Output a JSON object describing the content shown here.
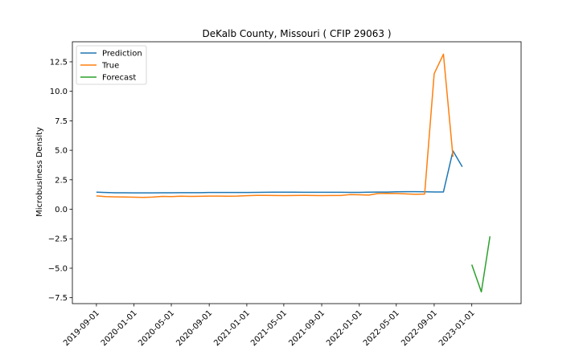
{
  "chart_data": {
    "type": "line",
    "title": "DeKalb County, Missouri ( CFIP 29063 )",
    "xlabel": "",
    "ylabel": "Microbusiness Density",
    "xlim": [
      "2019-06-15",
      "2023-06-10"
    ],
    "ylim": [
      -8.0,
      14.2
    ],
    "y_ticks": [
      -7.5,
      -5.0,
      -2.5,
      0.0,
      2.5,
      5.0,
      7.5,
      10.0,
      12.5
    ],
    "y_tick_labels": [
      "−7.5",
      "−5.0",
      "−2.5",
      "0.0",
      "2.5",
      "5.0",
      "7.5",
      "10.0",
      "12.5"
    ],
    "x_ticks": [
      "2019-09-01",
      "2020-01-01",
      "2020-05-01",
      "2020-09-01",
      "2021-01-01",
      "2021-05-01",
      "2021-09-01",
      "2022-01-01",
      "2022-05-01",
      "2022-09-01",
      "2023-01-01"
    ],
    "legend": {
      "position": "upper-left",
      "entries": [
        "Prediction",
        "True",
        "Forecast"
      ]
    },
    "grid": false,
    "series": [
      {
        "name": "Prediction",
        "color": "#1f77b4",
        "x": [
          "2019-09-01",
          "2019-10-01",
          "2019-11-01",
          "2019-12-01",
          "2020-01-01",
          "2020-02-01",
          "2020-03-01",
          "2020-04-01",
          "2020-05-01",
          "2020-06-01",
          "2020-07-01",
          "2020-08-01",
          "2020-09-01",
          "2020-10-01",
          "2020-11-01",
          "2020-12-01",
          "2021-01-01",
          "2021-02-01",
          "2021-03-01",
          "2021-04-01",
          "2021-05-01",
          "2021-06-01",
          "2021-07-01",
          "2021-08-01",
          "2021-09-01",
          "2021-10-01",
          "2021-11-01",
          "2021-12-01",
          "2022-01-01",
          "2022-02-01",
          "2022-03-01",
          "2022-04-01",
          "2022-05-01",
          "2022-06-01",
          "2022-07-01",
          "2022-08-01",
          "2022-09-01",
          "2022-10-01",
          "2022-11-01",
          "2022-12-01"
        ],
        "y": [
          1.45,
          1.42,
          1.4,
          1.4,
          1.39,
          1.39,
          1.39,
          1.4,
          1.4,
          1.41,
          1.41,
          1.41,
          1.42,
          1.42,
          1.42,
          1.42,
          1.42,
          1.43,
          1.44,
          1.45,
          1.45,
          1.45,
          1.44,
          1.44,
          1.44,
          1.44,
          1.44,
          1.43,
          1.43,
          1.45,
          1.46,
          1.46,
          1.48,
          1.49,
          1.49,
          1.48,
          1.47,
          1.47,
          4.95,
          3.6
        ]
      },
      {
        "name": "True",
        "color": "#ff7f0e",
        "x": [
          "2019-09-01",
          "2019-10-01",
          "2019-11-01",
          "2019-12-01",
          "2020-01-01",
          "2020-02-01",
          "2020-03-01",
          "2020-04-01",
          "2020-05-01",
          "2020-06-01",
          "2020-07-01",
          "2020-08-01",
          "2020-09-01",
          "2020-10-01",
          "2020-11-01",
          "2020-12-01",
          "2021-01-01",
          "2021-02-01",
          "2021-03-01",
          "2021-04-01",
          "2021-05-01",
          "2021-06-01",
          "2021-07-01",
          "2021-08-01",
          "2021-09-01",
          "2021-10-01",
          "2021-11-01",
          "2021-12-01",
          "2022-01-01",
          "2022-02-01",
          "2022-03-01",
          "2022-04-01",
          "2022-05-01",
          "2022-06-01",
          "2022-07-01",
          "2022-08-01",
          "2022-09-01",
          "2022-10-01",
          "2022-11-01",
          "2022-12-01"
        ],
        "y": [
          1.13,
          1.07,
          1.05,
          1.04,
          1.02,
          1.01,
          1.03,
          1.09,
          1.07,
          1.11,
          1.09,
          1.1,
          1.12,
          1.12,
          1.11,
          1.12,
          1.15,
          1.18,
          1.18,
          1.17,
          1.16,
          1.17,
          1.18,
          1.17,
          1.16,
          1.17,
          1.17,
          1.24,
          1.23,
          1.2,
          1.33,
          1.35,
          1.34,
          1.3,
          1.27,
          1.29,
          11.5,
          13.15,
          4.45,
          null
        ]
      },
      {
        "name": "Forecast",
        "color": "#2ca02c",
        "x": [
          "2023-01-01",
          "2023-02-01",
          "2023-03-01"
        ],
        "y": [
          -4.7,
          -7.0,
          -2.3
        ]
      }
    ]
  }
}
